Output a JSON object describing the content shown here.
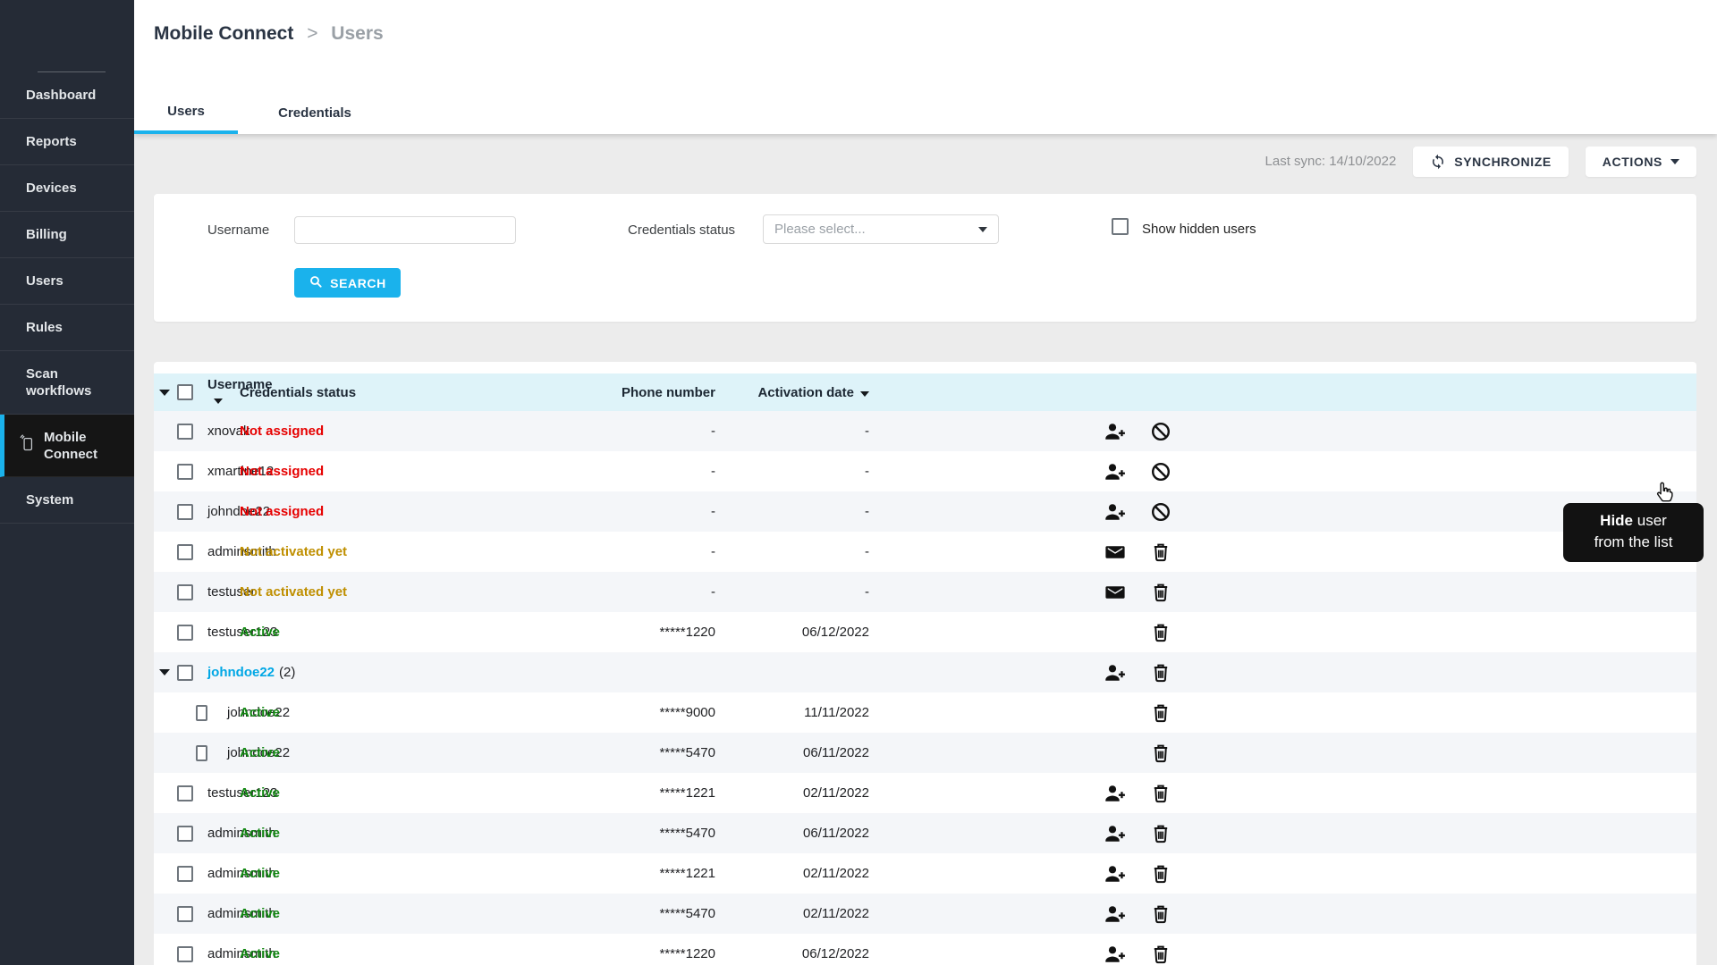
{
  "colors": {
    "accent": "#1ab2ec",
    "navy": "#2a3443",
    "sidebar_bg": "#252b36",
    "sidebar_active_bg": "#151515",
    "link_blue": "#00a7e5",
    "status_red": "#e60000",
    "status_amber": "#bf8f00",
    "status_green": "#128712",
    "header_row_bg": "#def3f9",
    "row_alt_bg": "#f4f6f9",
    "page_bg": "#ececec",
    "tooltip_bg": "#121212"
  },
  "sidebar": {
    "items": [
      {
        "label": "Dashboard",
        "slug": "dashboard",
        "icon": "menu-square"
      },
      {
        "label": "Reports",
        "slug": "reports",
        "icon": "menu-square"
      },
      {
        "label": "Devices",
        "slug": "devices",
        "icon": "menu-square"
      },
      {
        "label": "Billing",
        "slug": "billing",
        "icon": "menu-square"
      },
      {
        "label": "Users",
        "slug": "users",
        "icon": "menu-square"
      },
      {
        "label": "Rules",
        "slug": "rules",
        "icon": "menu-square"
      },
      {
        "label": "Scan workflows",
        "slug": "scan-workflows",
        "icon": "menu-square",
        "tall": true
      },
      {
        "label": "Mobile Connect",
        "slug": "mobile-connect",
        "icon": "mobile-phone",
        "active": true
      },
      {
        "label": "System",
        "slug": "system",
        "icon": "menu-square"
      }
    ]
  },
  "breadcrumb": {
    "parent": "Mobile Connect",
    "separator": ">",
    "current": "Users"
  },
  "tabs": {
    "users": "Users",
    "credentials": "Credentials"
  },
  "toolbar": {
    "last_sync": "Last sync: 14/10/2022",
    "synchronize_label": "SYNCHRONIZE",
    "actions_label": "ACTIONS"
  },
  "filters": {
    "username_label": "Username",
    "username_value": "",
    "credentials_status_label": "Credentials status",
    "credentials_status_placeholder": "Please select...",
    "show_hidden_label": "Show hidden users",
    "search_label": "SEARCH"
  },
  "table": {
    "columns": {
      "username": "Username",
      "credentials_status": "Credentials status",
      "phone": "Phone number",
      "activation": "Activation date"
    },
    "rows": [
      {
        "username": "xnovak",
        "status": "Not assigned",
        "status_type": "not_assigned",
        "phone": "-",
        "date": "-",
        "icons": [
          "person-add",
          "block"
        ]
      },
      {
        "username": "xmartine12",
        "status": "Not assigned",
        "status_type": "not_assigned",
        "phone": "-",
        "date": "-",
        "icons": [
          "person-add",
          "block"
        ],
        "hovered": true
      },
      {
        "username": "johndoe22",
        "status": "Not assigned",
        "status_type": "not_assigned",
        "phone": "-",
        "date": "-",
        "icons": [
          "person-add",
          "block"
        ]
      },
      {
        "username": "adminsmith",
        "status": "Not activated yet",
        "status_type": "not_activated",
        "phone": "-",
        "date": "-",
        "icons": [
          "envelope",
          "trash"
        ]
      },
      {
        "username": "testuser",
        "status": "Not activated yet",
        "status_type": "not_activated",
        "phone": "-",
        "date": "-",
        "icons": [
          "envelope",
          "trash"
        ]
      },
      {
        "username": "testuser123",
        "status": "Active",
        "status_type": "active",
        "phone": "*****1220",
        "date": "06/12/2022",
        "icons": [
          "trash"
        ]
      },
      {
        "username": "johndoe22",
        "group": true,
        "count": "(2)",
        "status": "",
        "status_type": "",
        "phone": "",
        "date": "",
        "icons": [
          "person-add",
          "trash"
        ]
      },
      {
        "username": "johndoe22",
        "child": true,
        "status": "Active",
        "status_type": "active",
        "phone": "*****9000",
        "date": "11/11/2022",
        "icons": [
          "trash"
        ]
      },
      {
        "username": "johndoe22",
        "child": true,
        "status": "Active",
        "status_type": "active",
        "phone": "*****5470",
        "date": "06/11/2022",
        "icons": [
          "trash"
        ]
      },
      {
        "username": "testuser123",
        "status": "Active",
        "status_type": "active",
        "phone": "*****1221",
        "date": "02/11/2022",
        "icons": [
          "person-add",
          "trash"
        ]
      },
      {
        "username": "adminsmith",
        "status": "Active",
        "status_type": "active",
        "phone": "*****5470",
        "date": "06/11/2022",
        "icons": [
          "person-add",
          "trash"
        ]
      },
      {
        "username": "adminsmith",
        "status": "Active",
        "status_type": "active",
        "phone": "*****1221",
        "date": "02/11/2022",
        "icons": [
          "person-add",
          "trash"
        ]
      },
      {
        "username": "adminsmith",
        "status": "Active",
        "status_type": "active",
        "phone": "*****5470",
        "date": "02/11/2022",
        "icons": [
          "person-add",
          "trash"
        ]
      },
      {
        "username": "adminsmith",
        "status": "Active",
        "status_type": "active",
        "phone": "*****1220",
        "date": "06/12/2022",
        "icons": [
          "person-add",
          "trash"
        ]
      }
    ]
  },
  "tooltip": {
    "bold": "Hide",
    "rest": " user",
    "line2": "from the list"
  }
}
